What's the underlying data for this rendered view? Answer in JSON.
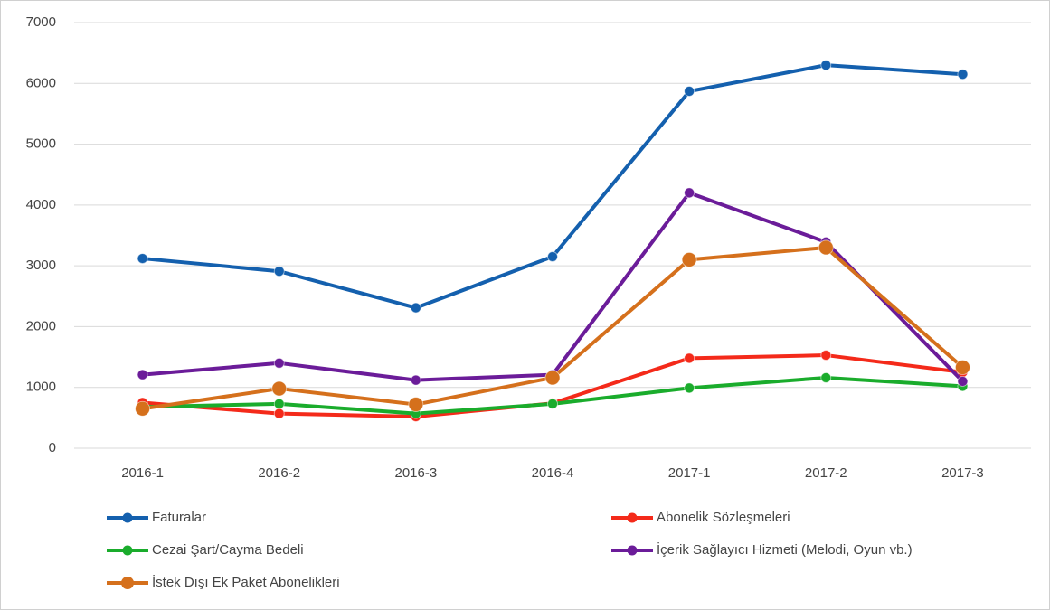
{
  "chart_data": {
    "type": "line",
    "categories": [
      "2016-1",
      "2016-2",
      "2016-3",
      "2016-4",
      "2017-1",
      "2017-2",
      "2017-3"
    ],
    "series": [
      {
        "name": "Faturalar",
        "color": "#1460ae",
        "values": [
          3120,
          2910,
          2310,
          3150,
          5870,
          6300,
          6150
        ]
      },
      {
        "name": "Abonelik Sözleşmeleri",
        "color": "#f42a1a",
        "values": [
          750,
          570,
          520,
          740,
          1480,
          1530,
          1250
        ]
      },
      {
        "name": "Cezai Şart/Cayma Bedeli",
        "color": "#1aac2c",
        "values": [
          680,
          730,
          570,
          730,
          990,
          1160,
          1020
        ]
      },
      {
        "name": "İçerik Sağlayıcı Hizmeti (Melodi, Oyun vb.)",
        "color": "#6b1c99",
        "values": [
          1210,
          1400,
          1120,
          1210,
          4200,
          3390,
          1100
        ]
      },
      {
        "name": "İstek Dışı Ek Paket Abonelikleri",
        "color": "#d5701c",
        "values": [
          650,
          980,
          720,
          1160,
          3100,
          3300,
          1330
        ]
      }
    ],
    "ylim": [
      0,
      7000
    ],
    "yticks": [
      0,
      1000,
      2000,
      3000,
      4000,
      5000,
      6000,
      7000
    ],
    "grid": true,
    "legend": "bottom"
  }
}
